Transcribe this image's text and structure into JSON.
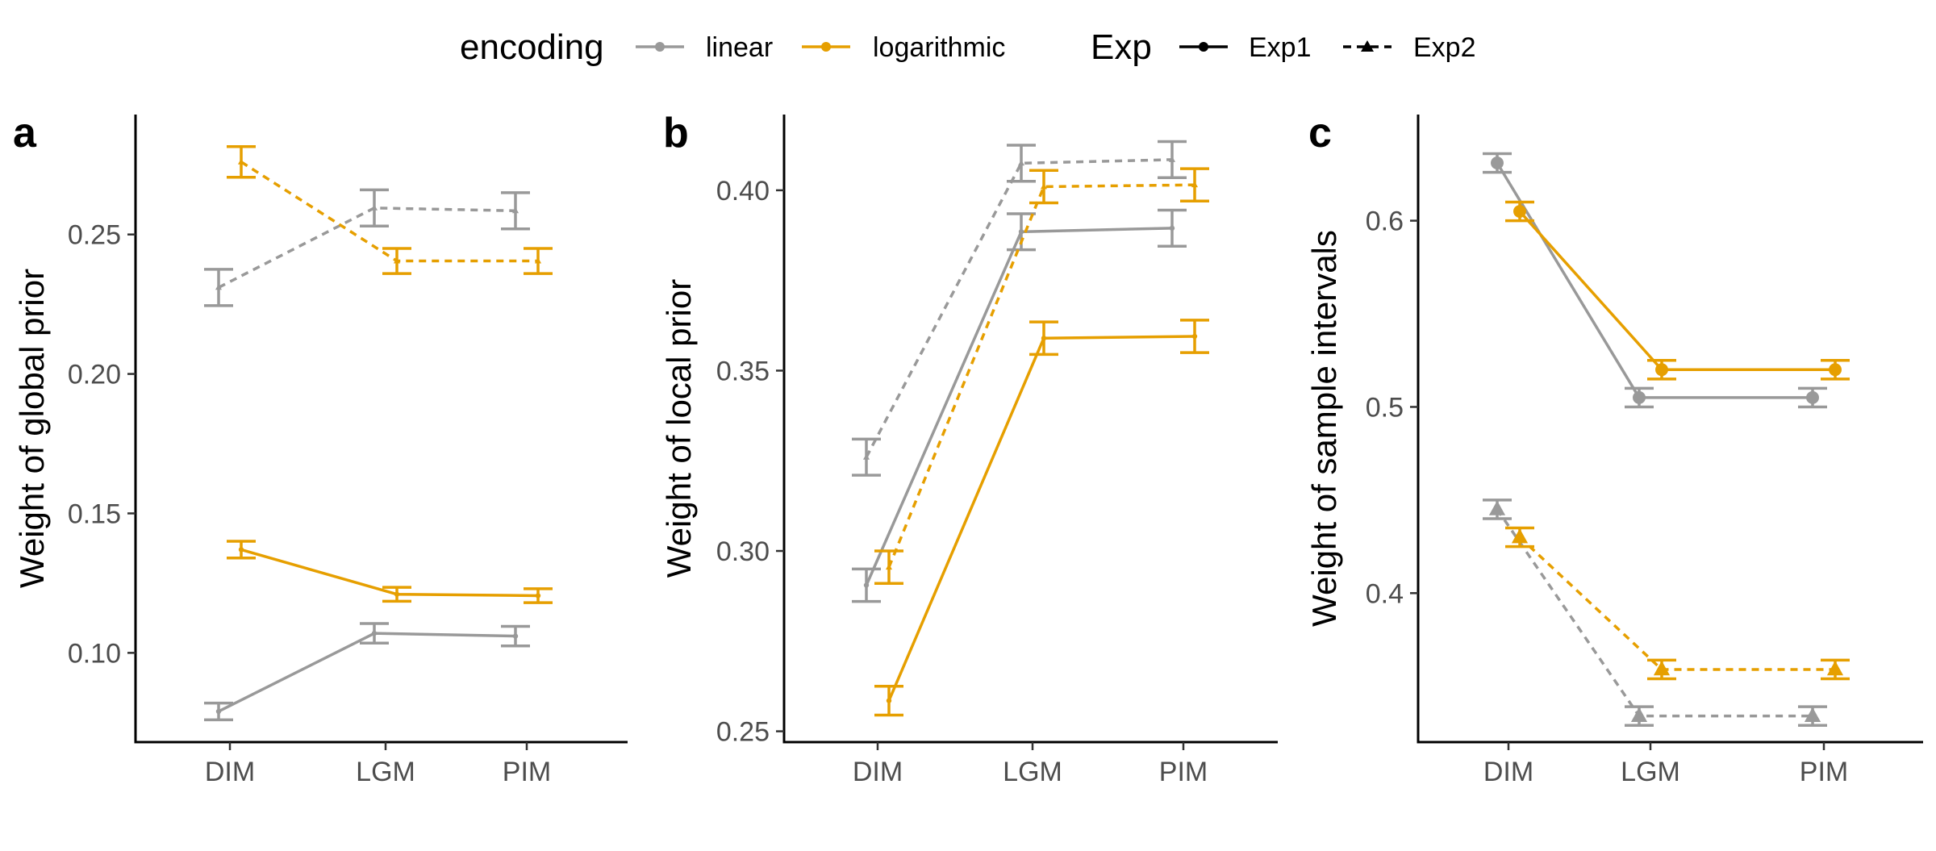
{
  "legend": {
    "encoding_title": "encoding",
    "encoding_items": [
      {
        "label": "linear",
        "color": "#999999"
      },
      {
        "label": "logarithmic",
        "color": "#E69F00"
      }
    ],
    "exp_title": "Exp",
    "exp_items": [
      {
        "label": "Exp1",
        "linetype": "solid",
        "marker": "circle"
      },
      {
        "label": "Exp2",
        "linetype": "dashed",
        "marker": "triangle"
      }
    ]
  },
  "chart_data": [
    {
      "type": "line",
      "panel_tag": "a",
      "ylabel": "Weight of global prior",
      "categories": [
        "DIM",
        "LGM",
        "PIM"
      ],
      "yticks": [
        "0.10",
        "0.15",
        "0.20",
        "0.25"
      ],
      "ylim": [
        0.068,
        0.293
      ],
      "series": [
        {
          "encoding": "linear",
          "exp": "Exp1",
          "color": "#999999",
          "values": [
            0.079,
            0.107,
            0.106
          ],
          "error": [
            0.003,
            0.0035,
            0.0035
          ]
        },
        {
          "encoding": "logarithmic",
          "exp": "Exp1",
          "color": "#E69F00",
          "values": [
            0.137,
            0.121,
            0.1205
          ],
          "error": [
            0.003,
            0.0025,
            0.0025
          ]
        },
        {
          "encoding": "linear",
          "exp": "Exp2",
          "color": "#999999",
          "values": [
            0.231,
            0.2595,
            0.2585
          ],
          "error": [
            0.0065,
            0.0065,
            0.0065
          ]
        },
        {
          "encoding": "logarithmic",
          "exp": "Exp2",
          "color": "#E69F00",
          "values": [
            0.276,
            0.2405,
            0.2405
          ],
          "error": [
            0.0055,
            0.0045,
            0.0045
          ]
        }
      ]
    },
    {
      "type": "line",
      "panel_tag": "b",
      "ylabel": "Weight of local prior",
      "categories": [
        "DIM",
        "LGM",
        "PIM"
      ],
      "yticks": [
        "0.25",
        "0.30",
        "0.35",
        "0.40"
      ],
      "ylim": [
        0.247,
        0.421
      ],
      "series": [
        {
          "encoding": "linear",
          "exp": "Exp1",
          "color": "#999999",
          "values": [
            0.2905,
            0.3885,
            0.3895
          ],
          "error": [
            0.0045,
            0.005,
            0.005
          ]
        },
        {
          "encoding": "logarithmic",
          "exp": "Exp1",
          "color": "#E69F00",
          "values": [
            0.2585,
            0.359,
            0.3595
          ],
          "error": [
            0.004,
            0.0045,
            0.0045
          ]
        },
        {
          "encoding": "linear",
          "exp": "Exp2",
          "color": "#999999",
          "values": [
            0.326,
            0.4075,
            0.4085
          ],
          "error": [
            0.005,
            0.005,
            0.005
          ]
        },
        {
          "encoding": "logarithmic",
          "exp": "Exp2",
          "color": "#E69F00",
          "values": [
            0.2955,
            0.401,
            0.4015
          ],
          "error": [
            0.0045,
            0.0045,
            0.0045
          ]
        }
      ]
    },
    {
      "type": "line",
      "panel_tag": "c",
      "ylabel": "Weight of sample intervals",
      "categories": [
        "DIM",
        "LGM",
        "PIM"
      ],
      "yticks": [
        "0.4",
        "0.5",
        "0.6"
      ],
      "ylim": [
        0.32,
        0.657
      ],
      "series": [
        {
          "encoding": "linear",
          "exp": "Exp1",
          "color": "#999999",
          "values": [
            0.631,
            0.505,
            0.505
          ],
          "error": [
            0.005,
            0.005,
            0.005
          ]
        },
        {
          "encoding": "logarithmic",
          "exp": "Exp1",
          "color": "#E69F00",
          "values": [
            0.605,
            0.52,
            0.52
          ],
          "error": [
            0.005,
            0.005,
            0.005
          ]
        },
        {
          "encoding": "linear",
          "exp": "Exp2",
          "color": "#999999",
          "values": [
            0.445,
            0.334,
            0.334
          ],
          "error": [
            0.005,
            0.005,
            0.005
          ]
        },
        {
          "encoding": "logarithmic",
          "exp": "Exp2",
          "color": "#E69F00",
          "values": [
            0.43,
            0.359,
            0.359
          ],
          "error": [
            0.005,
            0.005,
            0.005
          ]
        }
      ]
    }
  ]
}
